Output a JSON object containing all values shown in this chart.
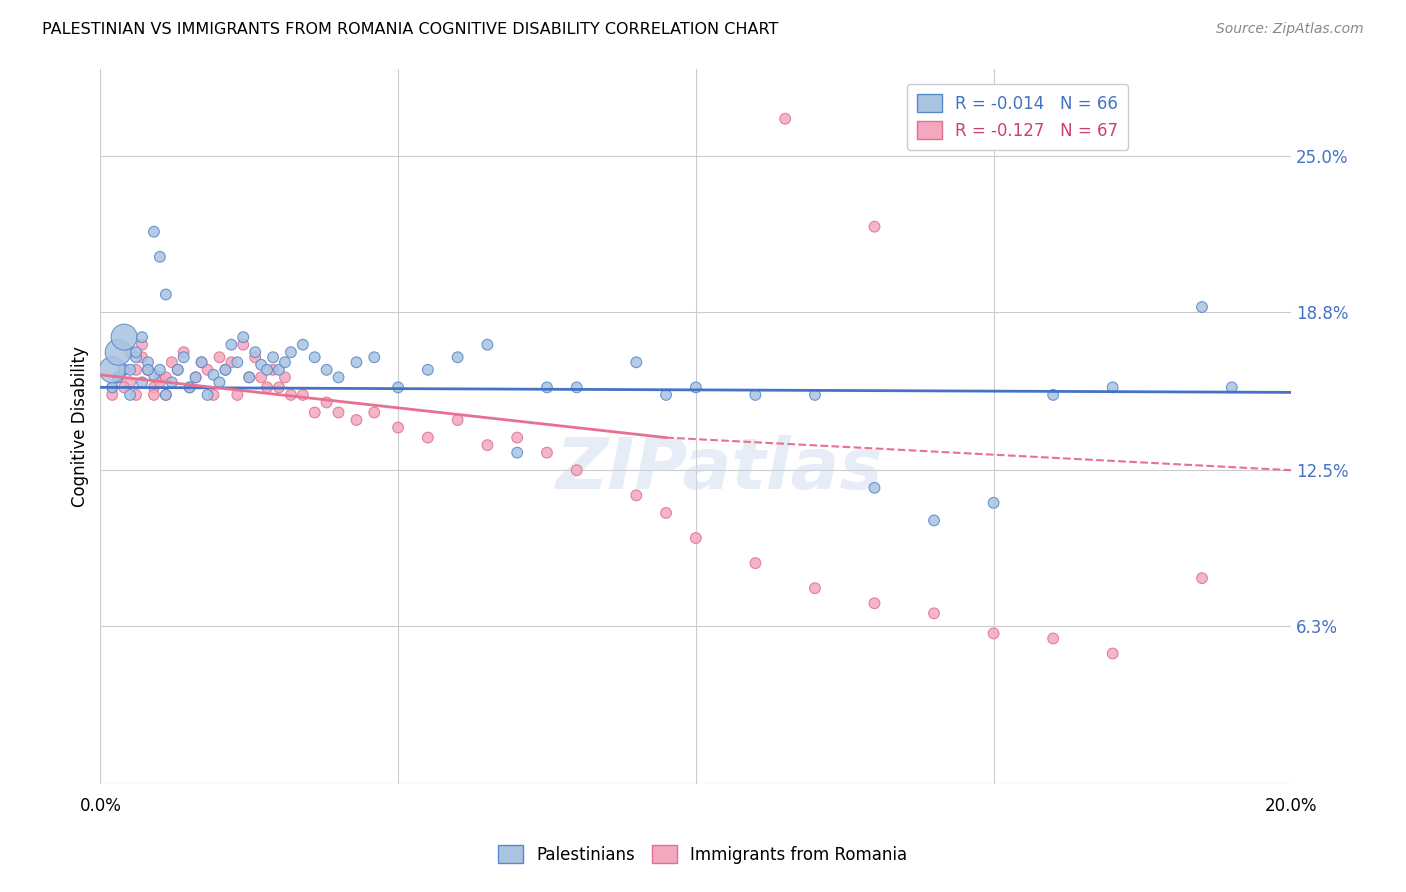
{
  "title": "PALESTINIAN VS IMMIGRANTS FROM ROMANIA COGNITIVE DISABILITY CORRELATION CHART",
  "source": "Source: ZipAtlas.com",
  "ylabel": "Cognitive Disability",
  "ytick_labels": [
    "25.0%",
    "18.8%",
    "12.5%",
    "6.3%"
  ],
  "ytick_values": [
    0.25,
    0.188,
    0.125,
    0.063
  ],
  "xmin": 0.0,
  "xmax": 0.2,
  "ymin": 0.0,
  "ymax": 0.285,
  "legend_blue_label": "R = -0.014   N = 66",
  "legend_pink_label": "R = -0.127   N = 67",
  "R_blue": -0.014,
  "N_blue": 66,
  "R_pink": -0.127,
  "N_pink": 67,
  "blue_color": "#aac4e0",
  "pink_color": "#f4a8c0",
  "blue_edge_color": "#5588cc",
  "pink_edge_color": "#e07090",
  "blue_line_color": "#4472c4",
  "pink_line_color": "#e87090",
  "watermark": "ZIPatlas",
  "blue_scatter_x": [
    0.002,
    0.003,
    0.004,
    0.005,
    0.006,
    0.007,
    0.008,
    0.009,
    0.01,
    0.011,
    0.012,
    0.013,
    0.014,
    0.015,
    0.016,
    0.017,
    0.018,
    0.019,
    0.02,
    0.021,
    0.022,
    0.023,
    0.024,
    0.025,
    0.026,
    0.027,
    0.028,
    0.029,
    0.03,
    0.031,
    0.032,
    0.034,
    0.036,
    0.038,
    0.04,
    0.043,
    0.046,
    0.05,
    0.055,
    0.06,
    0.065,
    0.07,
    0.075,
    0.08,
    0.09,
    0.095,
    0.1,
    0.11,
    0.12,
    0.13,
    0.14,
    0.15,
    0.16,
    0.17,
    0.185,
    0.19,
    0.002,
    0.003,
    0.004,
    0.005,
    0.006,
    0.007,
    0.008,
    0.009,
    0.01,
    0.011
  ],
  "blue_scatter_y": [
    0.158,
    0.162,
    0.165,
    0.155,
    0.17,
    0.16,
    0.168,
    0.163,
    0.165,
    0.155,
    0.16,
    0.165,
    0.17,
    0.158,
    0.162,
    0.168,
    0.155,
    0.163,
    0.16,
    0.165,
    0.175,
    0.168,
    0.178,
    0.162,
    0.172,
    0.167,
    0.165,
    0.17,
    0.165,
    0.168,
    0.172,
    0.175,
    0.17,
    0.165,
    0.162,
    0.168,
    0.17,
    0.158,
    0.165,
    0.17,
    0.175,
    0.132,
    0.158,
    0.158,
    0.168,
    0.155,
    0.158,
    0.155,
    0.155,
    0.118,
    0.105,
    0.112,
    0.155,
    0.158,
    0.19,
    0.158,
    0.165,
    0.172,
    0.178,
    0.165,
    0.172,
    0.178,
    0.165,
    0.22,
    0.21,
    0.195
  ],
  "blue_scatter_sizes": [
    60,
    60,
    60,
    60,
    60,
    60,
    60,
    60,
    60,
    60,
    60,
    60,
    60,
    60,
    60,
    60,
    60,
    60,
    60,
    60,
    60,
    60,
    60,
    60,
    60,
    60,
    60,
    60,
    60,
    60,
    60,
    60,
    60,
    60,
    60,
    60,
    60,
    60,
    60,
    60,
    60,
    60,
    60,
    60,
    60,
    60,
    60,
    60,
    60,
    60,
    60,
    60,
    60,
    60,
    60,
    60,
    350,
    350,
    350,
    60,
    60,
    60,
    60,
    60,
    60,
    60
  ],
  "pink_scatter_x": [
    0.002,
    0.003,
    0.004,
    0.005,
    0.006,
    0.007,
    0.008,
    0.009,
    0.01,
    0.011,
    0.012,
    0.013,
    0.014,
    0.015,
    0.016,
    0.017,
    0.018,
    0.019,
    0.02,
    0.021,
    0.022,
    0.023,
    0.024,
    0.025,
    0.026,
    0.027,
    0.028,
    0.029,
    0.03,
    0.031,
    0.032,
    0.034,
    0.036,
    0.038,
    0.04,
    0.043,
    0.046,
    0.05,
    0.055,
    0.06,
    0.065,
    0.07,
    0.075,
    0.08,
    0.09,
    0.095,
    0.1,
    0.11,
    0.12,
    0.13,
    0.14,
    0.15,
    0.16,
    0.17,
    0.185,
    0.002,
    0.003,
    0.004,
    0.005,
    0.006,
    0.007,
    0.008,
    0.009,
    0.01,
    0.011,
    0.115,
    0.13
  ],
  "pink_scatter_y": [
    0.158,
    0.162,
    0.165,
    0.16,
    0.155,
    0.17,
    0.165,
    0.158,
    0.162,
    0.155,
    0.168,
    0.165,
    0.172,
    0.158,
    0.162,
    0.168,
    0.165,
    0.155,
    0.17,
    0.165,
    0.168,
    0.155,
    0.175,
    0.162,
    0.17,
    0.162,
    0.158,
    0.165,
    0.158,
    0.162,
    0.155,
    0.155,
    0.148,
    0.152,
    0.148,
    0.145,
    0.148,
    0.142,
    0.138,
    0.145,
    0.135,
    0.138,
    0.132,
    0.125,
    0.115,
    0.108,
    0.098,
    0.088,
    0.078,
    0.072,
    0.068,
    0.06,
    0.058,
    0.052,
    0.082,
    0.155,
    0.162,
    0.158,
    0.172,
    0.165,
    0.175,
    0.165,
    0.155,
    0.16,
    0.162,
    0.265,
    0.222
  ],
  "pink_scatter_sizes": [
    60,
    60,
    60,
    60,
    60,
    60,
    60,
    60,
    60,
    60,
    60,
    60,
    60,
    60,
    60,
    60,
    60,
    60,
    60,
    60,
    60,
    60,
    60,
    60,
    60,
    60,
    60,
    60,
    60,
    60,
    60,
    60,
    60,
    60,
    60,
    60,
    60,
    60,
    60,
    60,
    60,
    60,
    60,
    60,
    60,
    60,
    60,
    60,
    60,
    60,
    60,
    60,
    60,
    60,
    60,
    60,
    60,
    60,
    60,
    60,
    60,
    60,
    60,
    60,
    60,
    60,
    60
  ],
  "blue_line_y0": 0.158,
  "blue_line_y1": 0.156,
  "pink_line_solid_x0": 0.0,
  "pink_line_solid_x1": 0.095,
  "pink_line_y0": 0.163,
  "pink_line_y1": 0.138,
  "pink_line_dash_x0": 0.095,
  "pink_line_dash_x1": 0.2,
  "pink_line_dash_y0": 0.138,
  "pink_line_dash_y1": 0.125
}
